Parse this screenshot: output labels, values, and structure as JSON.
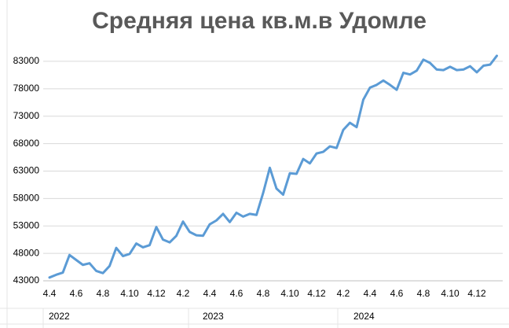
{
  "chart_data": {
    "type": "line",
    "title": "Средняя цена кв.м.в Удомле",
    "categories": [
      "4.4",
      null,
      null,
      null,
      "4.6",
      null,
      null,
      null,
      "4.8",
      null,
      null,
      null,
      "4.10",
      null,
      null,
      null,
      "4.12",
      null,
      null,
      null,
      "4.2",
      null,
      null,
      null,
      "4.4",
      null,
      null,
      null,
      "4.6",
      null,
      null,
      null,
      "4.8",
      null,
      null,
      null,
      "4.10",
      null,
      null,
      null,
      "4.12",
      null,
      null,
      null,
      "4.2",
      null,
      null,
      null,
      "4.4",
      null,
      null,
      null,
      "4.6",
      null,
      null,
      null,
      "4.8",
      null,
      null,
      null,
      "4.10",
      null,
      null,
      null,
      "4.12",
      null,
      null,
      null
    ],
    "year_labels": [
      "2022",
      "2023",
      "2024"
    ],
    "series": [
      {
        "color": "#5b9bd5",
        "values": [
          43600,
          44100,
          44500,
          47700,
          46800,
          45900,
          46200,
          44800,
          44400,
          45700,
          49000,
          47500,
          47900,
          49800,
          49100,
          49500,
          52800,
          50500,
          50000,
          51200,
          53800,
          51900,
          51300,
          51200,
          53300,
          54000,
          55200,
          53700,
          55400,
          54700,
          55200,
          55000,
          59000,
          63600,
          59800,
          58700,
          62600,
          62500,
          65200,
          64400,
          66200,
          66500,
          67500,
          67200,
          70500,
          71800,
          71000,
          76000,
          78200,
          78700,
          79500,
          78700,
          77800,
          80900,
          80600,
          81300,
          83300,
          82700,
          81500,
          81400,
          82000,
          81400,
          81500,
          82100,
          81000,
          82200,
          82400,
          84000
        ]
      }
    ],
    "ylim": [
      43000,
      86000
    ],
    "yticks": [
      43000,
      48000,
      53000,
      58000,
      63000,
      68000,
      73000,
      78000,
      83000
    ],
    "grid": true
  }
}
